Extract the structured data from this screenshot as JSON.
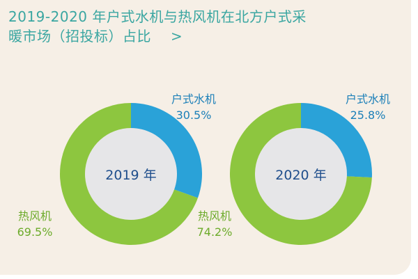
{
  "header": {
    "title_line1": "2019-2020 年户式水机与热风机在北方户式采",
    "title_line2": "暖市场（招投标）占比",
    "chevron": ">"
  },
  "colors": {
    "title": "#3aa6a1",
    "card_bg": "#f6efe6",
    "water_unit": "#2aa2d8",
    "hot_air": "#8dc63f",
    "center_fill": "#e6e6e8",
    "label_blue": "#1b7fb8",
    "label_green": "#6cab2a",
    "center_text": "#1f4e8c"
  },
  "chart_data": [
    {
      "type": "pie",
      "center_label": "2019 年",
      "slices": [
        {
          "name": "户式水机",
          "value": 30.5,
          "label": "30.5%"
        },
        {
          "name": "热风机",
          "value": 69.5,
          "label": "69.5%"
        }
      ]
    },
    {
      "type": "pie",
      "center_label": "2020 年",
      "slices": [
        {
          "name": "户式水机",
          "value": 25.8,
          "label": "25.8%"
        },
        {
          "name": "热风机",
          "value": 74.2,
          "label": "74.2%"
        }
      ]
    }
  ]
}
